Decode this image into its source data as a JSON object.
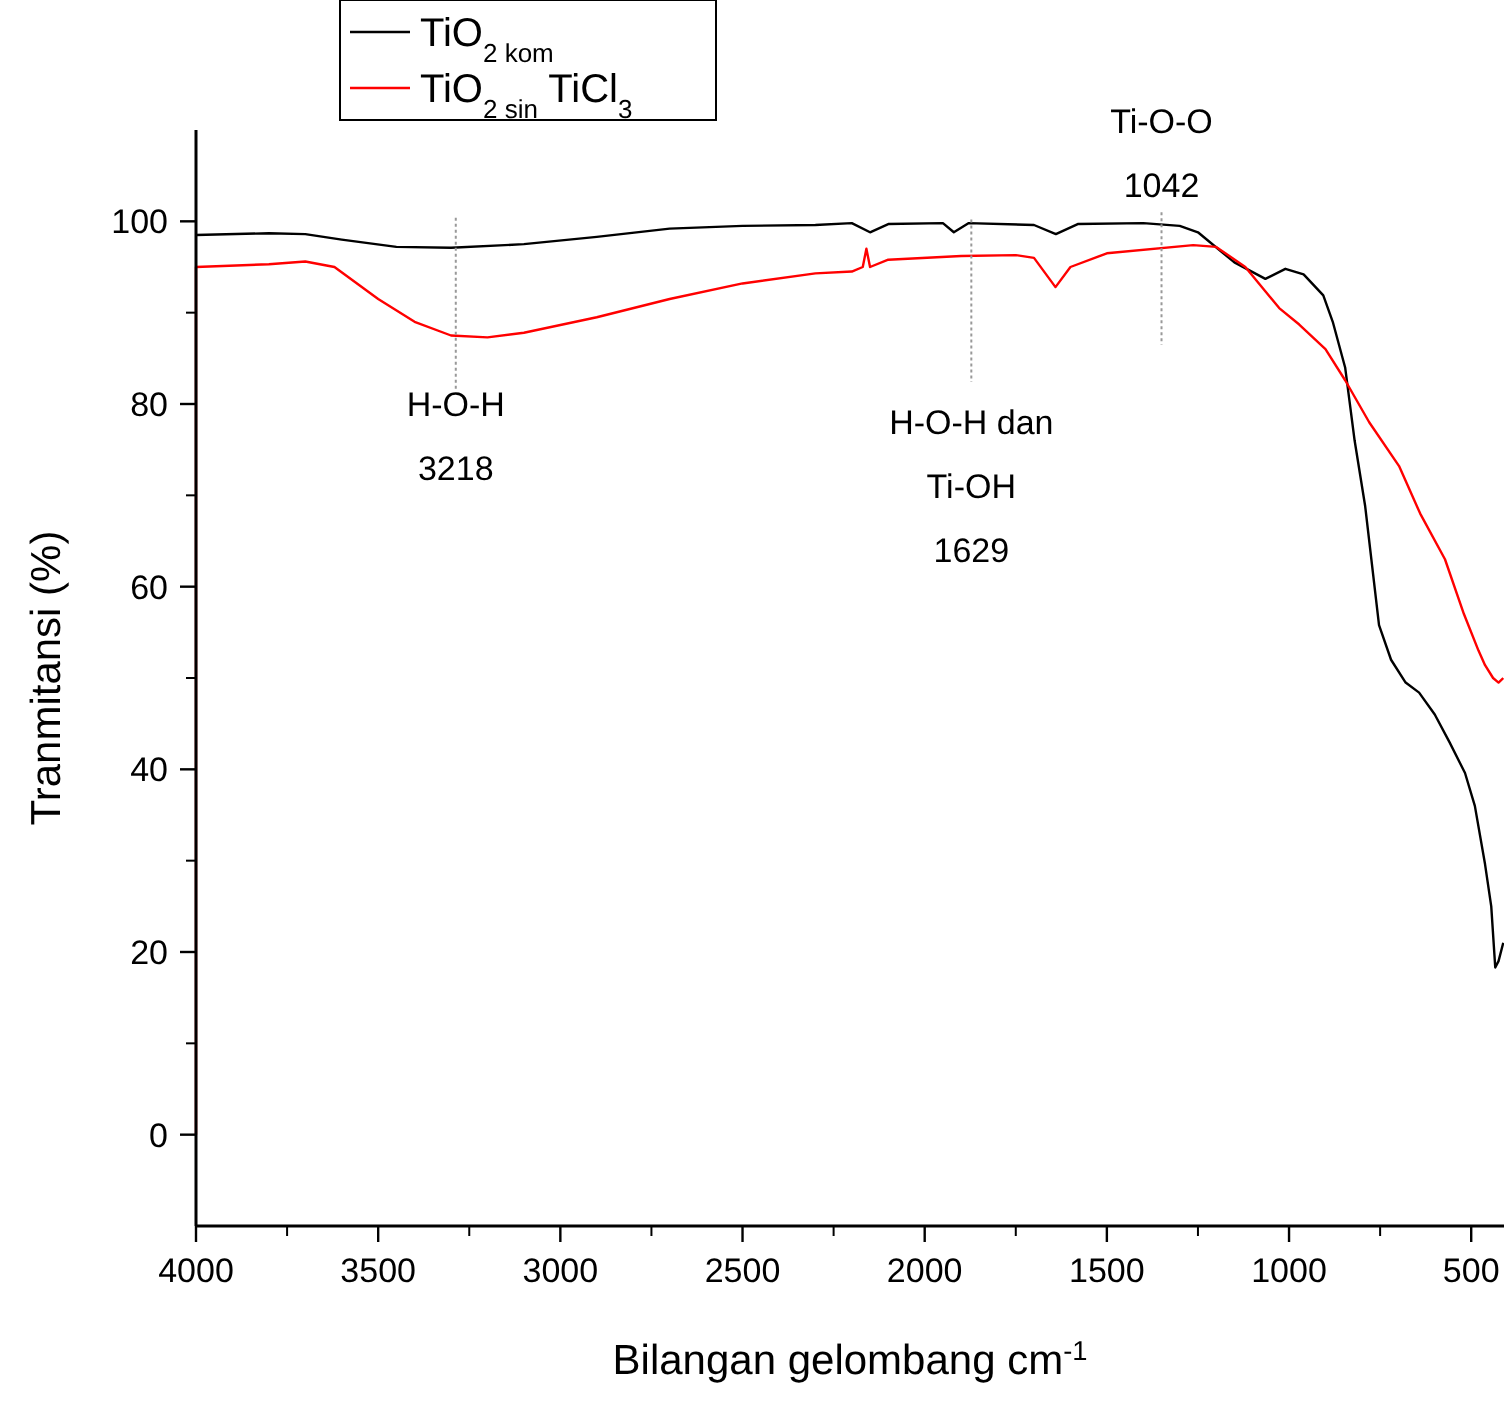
{
  "chart_data": {
    "type": "line",
    "xlabel": "Bilangan gelombang cm$^{-1}$",
    "ylabel": "Tranmitansi (%)",
    "xlim": [
      4000,
      410
    ],
    "ylim": [
      -10,
      110
    ],
    "xticks": [
      4000,
      3500,
      3000,
      2500,
      2000,
      1500,
      1000,
      500
    ],
    "yticks": [
      0,
      20,
      40,
      60,
      80,
      100
    ],
    "legend": "top left",
    "grid": false,
    "line_style": "solid",
    "annotations": [
      {
        "text": "H-O-H\n3218",
        "x": 3287,
        "y": 87.5
      },
      {
        "text": "H-O-H dan\nTi-OH\n1629",
        "x": 1872,
        "y": 99.8
      },
      {
        "text": "Ti-O-O\n1042",
        "x": 1350,
        "y": 97.2
      }
    ],
    "series": [
      {
        "name": "TiO$_{2 kom}$",
        "color": "#000000",
        "x": [
          4000,
          3800,
          3700,
          3600,
          3450,
          3300,
          3100,
          2900,
          2700,
          2500,
          2300,
          2200,
          2150,
          2100,
          1950,
          1920,
          1880,
          1700,
          1640,
          1580,
          1400,
          1300,
          1250,
          1150,
          1065,
          1010,
          960,
          906,
          880,
          846,
          820,
          791,
          753,
          720,
          680,
          643,
          600,
          560,
          517,
          490,
          462,
          445,
          434,
          425,
          412
        ],
        "values": [
          98.5,
          98.7,
          98.6,
          98,
          97.2,
          97.1,
          97.5,
          98.3,
          99.2,
          99.5,
          99.6,
          99.8,
          98.8,
          99.7,
          99.8,
          98.8,
          99.8,
          99.6,
          98.6,
          99.7,
          99.8,
          99.5,
          98.8,
          95.5,
          93.7,
          94.8,
          94.2,
          91.9,
          89,
          84,
          76,
          68.8,
          55.8,
          52,
          49.5,
          48.4,
          46,
          43,
          39.6,
          36,
          29.6,
          25,
          18.3,
          19,
          21
        ]
      },
      {
        "name": "TiO$_{2 sin}$ TiCl$_{3}$",
        "color": "#ff0000",
        "x": [
          4000,
          4000,
          3800,
          3700,
          3620,
          3500,
          3400,
          3300,
          3200,
          3100,
          2900,
          2700,
          2500,
          2300,
          2200,
          2170,
          2160,
          2150,
          2100,
          1900,
          1750,
          1700,
          1641,
          1600,
          1500,
          1263,
          1200,
          1120,
          1027,
          972,
          900,
          846,
          780,
          698,
          640,
          572,
          520,
          480,
          462,
          440,
          425,
          412
        ],
        "values": [
          0,
          95,
          95.3,
          95.6,
          95,
          91.5,
          89,
          87.5,
          87.3,
          87.8,
          89.5,
          91.5,
          93.2,
          94.3,
          94.5,
          95,
          97,
          95,
          95.8,
          96.2,
          96.3,
          96,
          92.8,
          95,
          96.5,
          97.4,
          97.2,
          95,
          90.5,
          88.7,
          86,
          82.6,
          78,
          73.2,
          68,
          63,
          57,
          53,
          51.4,
          50,
          49.5,
          50
        ]
      }
    ]
  }
}
